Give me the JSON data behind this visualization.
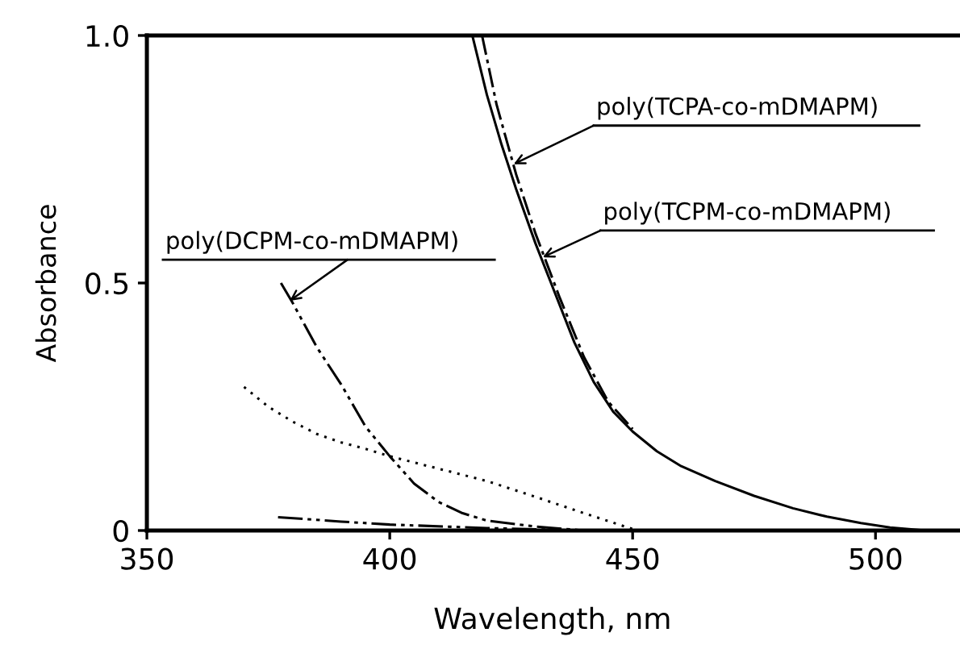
{
  "chart_data": {
    "type": "line",
    "xlabel": "Wavelength, nm",
    "ylabel": "Absorbance",
    "xlim": [
      350,
      517
    ],
    "ylim": [
      0,
      1.0
    ],
    "xticks": [
      350,
      400,
      450,
      500
    ],
    "yticks": [
      {
        "value": 0,
        "label": "0"
      },
      0.5,
      {
        "value": 1.0,
        "label": "1.0"
      }
    ],
    "grid": false,
    "legend": false,
    "marker": "none",
    "series": [
      {
        "color": "#000000",
        "line_style": "solid",
        "x": [
          417,
          420,
          423,
          426,
          430,
          434,
          438,
          442,
          446,
          450,
          455,
          460,
          467,
          475,
          483,
          490,
          497,
          503,
          510
        ],
        "values": [
          1.0,
          0.88,
          0.78,
          0.69,
          0.58,
          0.48,
          0.38,
          0.3,
          0.24,
          0.2,
          0.16,
          0.13,
          0.1,
          0.07,
          0.045,
          0.028,
          0.015,
          0.006,
          0.0
        ]
      },
      {
        "color": "#000000",
        "line_style": "dashdot",
        "x": [
          419,
          422,
          426,
          430,
          435,
          440,
          445,
          450
        ],
        "values": [
          1.0,
          0.86,
          0.72,
          0.6,
          0.47,
          0.35,
          0.26,
          0.205
        ]
      },
      {
        "color": "#000000",
        "line_style": "dashdotdot",
        "x": [
          377.6,
          380,
          385,
          390,
          395,
          400,
          405,
          410,
          415,
          420,
          430,
          440
        ],
        "values": [
          0.5,
          0.46,
          0.37,
          0.295,
          0.21,
          0.15,
          0.095,
          0.058,
          0.035,
          0.02,
          0.008,
          0.0
        ]
      },
      {
        "color": "#000000",
        "line_style": "dotted",
        "x": [
          370,
          375,
          380,
          385,
          390,
          395,
          400,
          410,
          420,
          430,
          440,
          450
        ],
        "values": [
          0.29,
          0.25,
          0.22,
          0.195,
          0.178,
          0.165,
          0.15,
          0.125,
          0.1,
          0.068,
          0.035,
          0.003
        ]
      },
      {
        "color": "#000000",
        "line_style": "dashdotdot",
        "x": [
          377,
          390,
          400,
          420,
          440
        ],
        "values": [
          0.027,
          0.018,
          0.012,
          0.005,
          0.0
        ]
      }
    ],
    "annotations": [
      {
        "text": "poly(TCPA-co-mDMAPM)",
        "x": 425.5,
        "y": 0.74
      },
      {
        "text": "poly(TCPM-co-mDMAPM)",
        "x": 431.5,
        "y": 0.552
      },
      {
        "text": "poly(DCPM-co-mDMAPM)",
        "x": 379.4,
        "y": 0.464
      }
    ]
  }
}
